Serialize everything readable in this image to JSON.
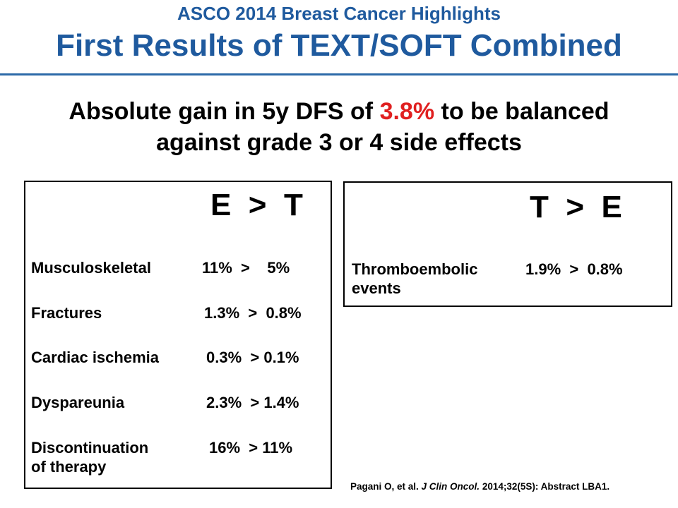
{
  "header": {
    "supertitle": "ASCO 2014 Breast Cancer Highlights",
    "title": "First Results of TEXT/SOFT Combined"
  },
  "headline": {
    "prefix": "Absolute gain in 5y DFS of ",
    "highlight": "3.8%",
    "suffix": " to be balanced",
    "line2": "against grade 3 or 4 side effects",
    "highlight_color": "#e02020"
  },
  "box_e_gt_t": {
    "title": "E  >  T",
    "rows": [
      {
        "label": "Musculoskeletal",
        "value": "11%  >    5%"
      },
      {
        "label": "Fractures",
        "value": "1.3%  >  0.8%"
      },
      {
        "label": "Cardiac ischemia",
        "value": "0.3%  > 0.1%"
      },
      {
        "label": "Dyspareunia",
        "value": "2.3%  > 1.4%"
      },
      {
        "label": "Discontinuation",
        "label2": "of therapy",
        "value": "16%  > 11%"
      }
    ]
  },
  "box_t_gt_e": {
    "title": "T  >  E",
    "rows": [
      {
        "label": "Thromboembolic",
        "label2": "events",
        "value": "1.9%  >  0.8%"
      }
    ]
  },
  "citation": {
    "authors": "Pagani O, et al. ",
    "journal": "J Clin Oncol.",
    "rest": " 2014;32(5S): Abstract LBA1."
  },
  "colors": {
    "title_blue": "#1f5a9e",
    "rule_blue": "#2c6aa8"
  }
}
